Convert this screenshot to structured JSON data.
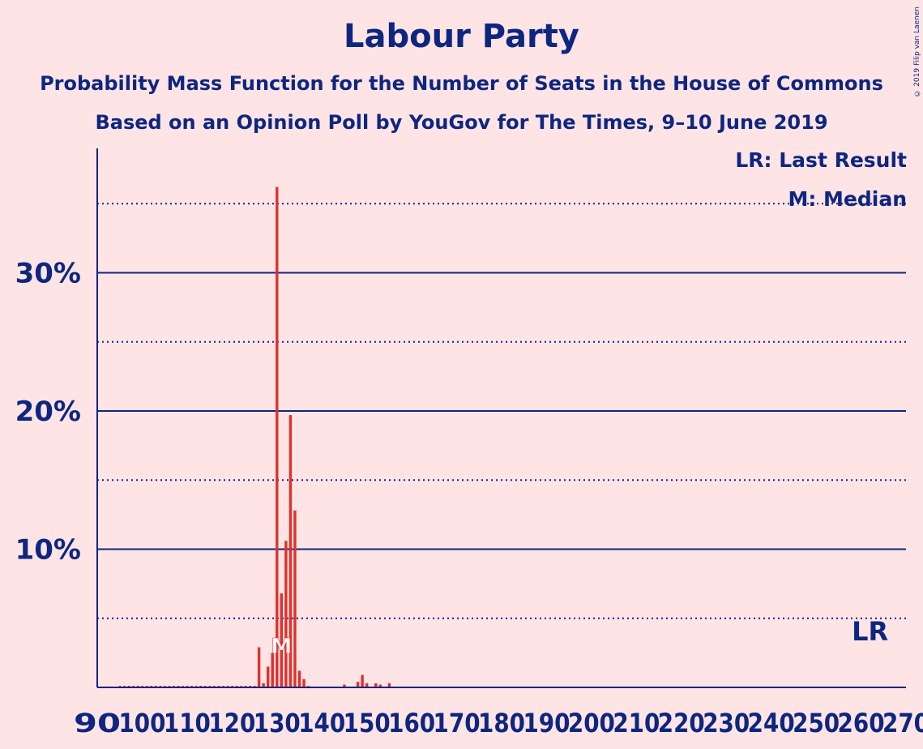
{
  "title": "Labour Party",
  "subtitle_1": "Probability Mass Function for the Number of Seats in the House of Commons",
  "subtitle_2": "Based on an Opinion Poll by YouGov for The Times, 9–10 June 2019",
  "copyright": "© 2019 Filip van Laenen",
  "legend": {
    "last_result": "LR: Last Result",
    "median": "M: Median"
  },
  "colors": {
    "background": "#ffe4e6",
    "text": "#0d2680",
    "bar": "#e0302a"
  },
  "chart_data": {
    "type": "bar",
    "title": "Labour Party",
    "xlabel": "",
    "ylabel": "",
    "xlim": [
      90,
      270
    ],
    "ylim": [
      0,
      0.39
    ],
    "x_ticks": [
      "90",
      "100",
      "110",
      "120",
      "130",
      "140",
      "150",
      "160",
      "170",
      "180",
      "190",
      "200",
      "210",
      "220",
      "230",
      "240",
      "250",
      "260",
      "270"
    ],
    "y_ticks_major": [
      {
        "value": 0.1,
        "label": "10%"
      },
      {
        "value": 0.2,
        "label": "20%"
      },
      {
        "value": 0.3,
        "label": "30%"
      }
    ],
    "y_ticks_minor": [
      0.05,
      0.15,
      0.25,
      0.35
    ],
    "bars": [
      {
        "x": 126,
        "y": 0.029
      },
      {
        "x": 127,
        "y": 0.003
      },
      {
        "x": 128,
        "y": 0.015
      },
      {
        "x": 129,
        "y": 0.025
      },
      {
        "x": 130,
        "y": 0.362
      },
      {
        "x": 131,
        "y": 0.068
      },
      {
        "x": 132,
        "y": 0.106
      },
      {
        "x": 133,
        "y": 0.197
      },
      {
        "x": 134,
        "y": 0.128
      },
      {
        "x": 135,
        "y": 0.012
      },
      {
        "x": 136,
        "y": 0.006
      },
      {
        "x": 137,
        "y": 0.001
      },
      {
        "x": 145,
        "y": 0.002
      },
      {
        "x": 148,
        "y": 0.004
      },
      {
        "x": 149,
        "y": 0.009
      },
      {
        "x": 150,
        "y": 0.003
      },
      {
        "x": 152,
        "y": 0.003
      },
      {
        "x": 153,
        "y": 0.002
      },
      {
        "x": 155,
        "y": 0.003
      }
    ],
    "median": {
      "x": 131,
      "label": "M"
    },
    "last_result": {
      "x": 262,
      "label": "LR"
    }
  }
}
